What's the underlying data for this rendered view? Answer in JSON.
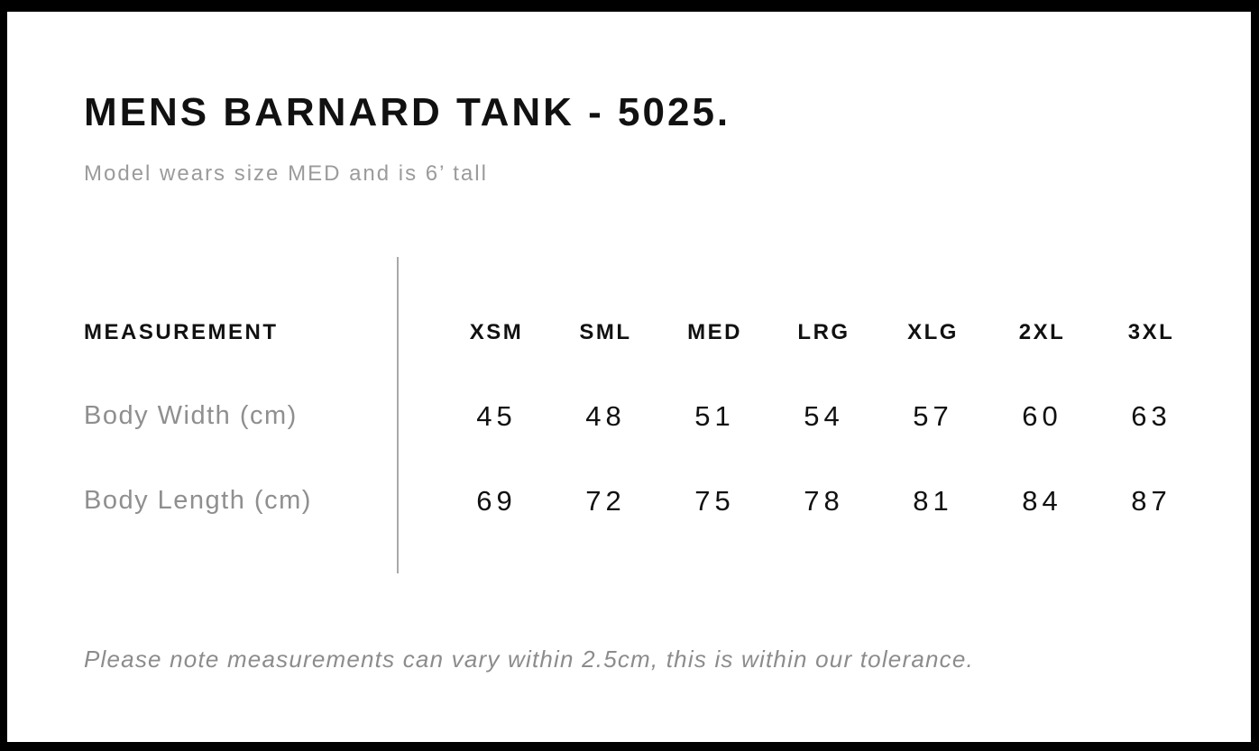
{
  "header": {
    "title": "MENS BARNARD TANK - 5025.",
    "subtitle": "Model wears size MED and is 6’ tall"
  },
  "size_chart": {
    "measurement_header": "MEASUREMENT",
    "size_headers": [
      "XSM",
      "SML",
      "MED",
      "LRG",
      "XLG",
      "2XL",
      "3XL"
    ],
    "rows": [
      {
        "label": "Body Width (cm)",
        "values": [
          "45",
          "48",
          "51",
          "54",
          "57",
          "60",
          "63"
        ]
      },
      {
        "label": "Body Length (cm)",
        "values": [
          "69",
          "72",
          "75",
          "78",
          "81",
          "84",
          "87"
        ]
      }
    ]
  },
  "footer": {
    "note": "Please note measurements can vary within 2.5cm, this is within our tolerance."
  },
  "colors": {
    "background": "#ffffff",
    "frame": "#000000",
    "text_primary": "#111111",
    "text_secondary": "#9b9b9b",
    "text_muted": "#8f8f8f",
    "text_note": "#8c8c8c",
    "divider": "#a9a9a9"
  }
}
